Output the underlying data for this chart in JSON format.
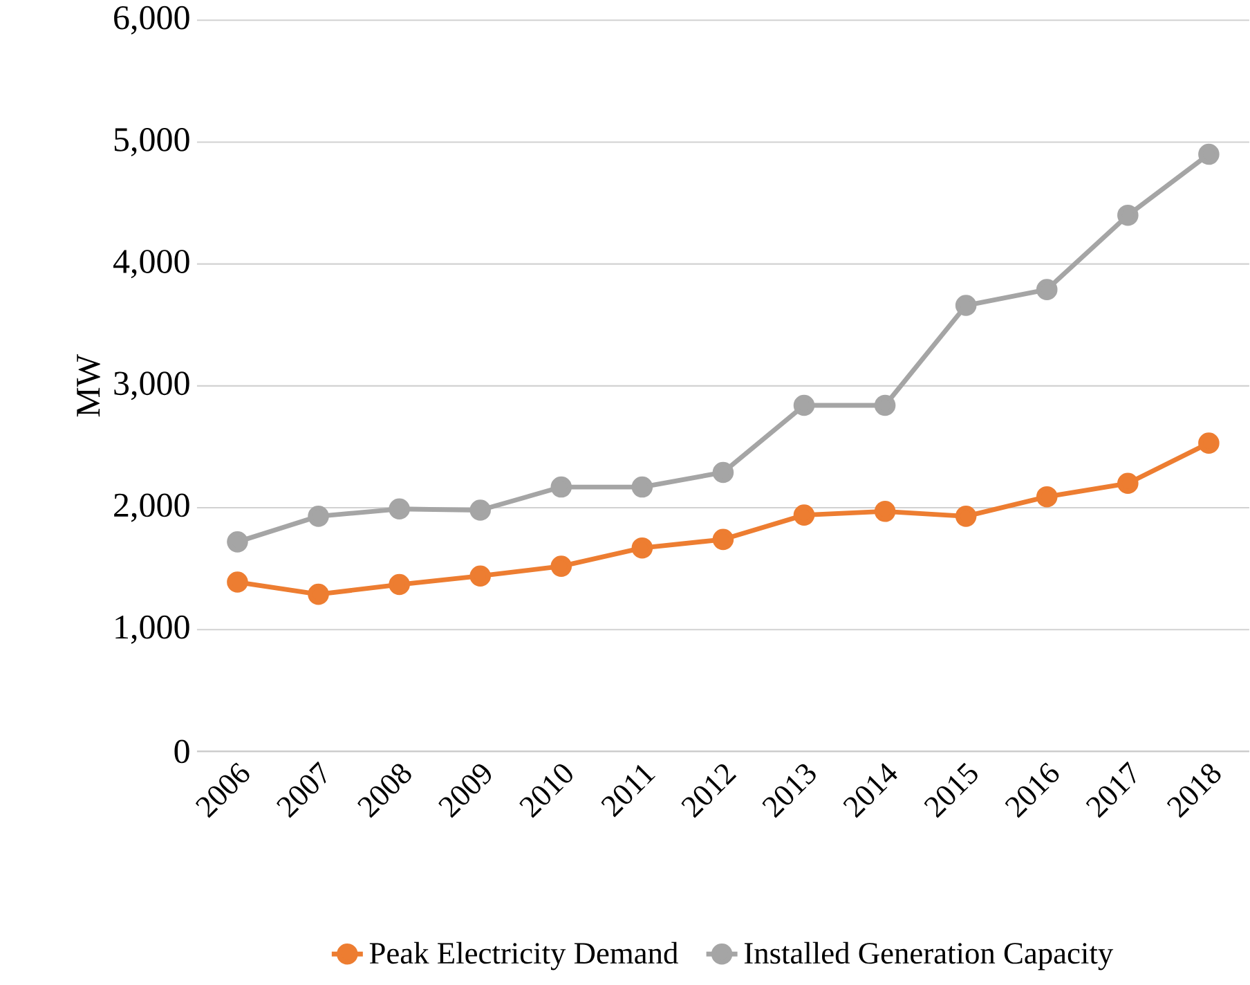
{
  "chart_data": {
    "type": "line",
    "ylabel": "MW",
    "categories": [
      "2006",
      "2007",
      "2008",
      "2009",
      "2010",
      "2011",
      "2012",
      "2013",
      "2014",
      "2015",
      "2016",
      "2017",
      "2018"
    ],
    "series": [
      {
        "name": "Peak Electricity Demand",
        "color": "#ed7d31",
        "values": [
          1390,
          1290,
          1370,
          1440,
          1520,
          1670,
          1740,
          1940,
          1970,
          1930,
          2090,
          2200,
          2530
        ]
      },
      {
        "name": "Installed Generation Capacity",
        "color": "#a5a5a5",
        "values": [
          1720,
          1930,
          1990,
          1980,
          2170,
          2170,
          2290,
          2840,
          2840,
          3660,
          3790,
          4400,
          4900
        ]
      }
    ],
    "ylim": [
      0,
      6000
    ],
    "yticks": [
      {
        "value": 0,
        "label": "0"
      },
      {
        "value": 1000,
        "label": "1,000"
      },
      {
        "value": 2000,
        "label": "2,000"
      },
      {
        "value": 3000,
        "label": "3,000"
      },
      {
        "value": 4000,
        "label": "4,000"
      },
      {
        "value": 5000,
        "label": "5,000"
      },
      {
        "value": 6000,
        "label": "6,000"
      }
    ],
    "grid": "y",
    "legend": "bottom",
    "marker": "circle",
    "line_style": "solid"
  }
}
